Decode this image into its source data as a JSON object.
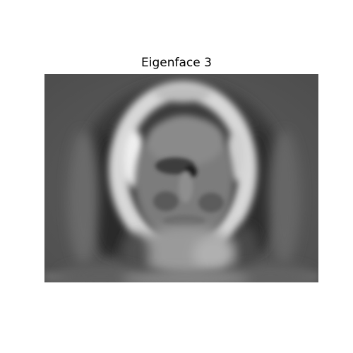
{
  "figure": {
    "title": "Eigenface 3"
  },
  "image": {
    "description_icon": "grayscale-eigenface-image",
    "colormap": "gray"
  },
  "colors": {
    "background": "#ffffff",
    "title_text": "#000000",
    "image_base": "#5a5a5a"
  }
}
